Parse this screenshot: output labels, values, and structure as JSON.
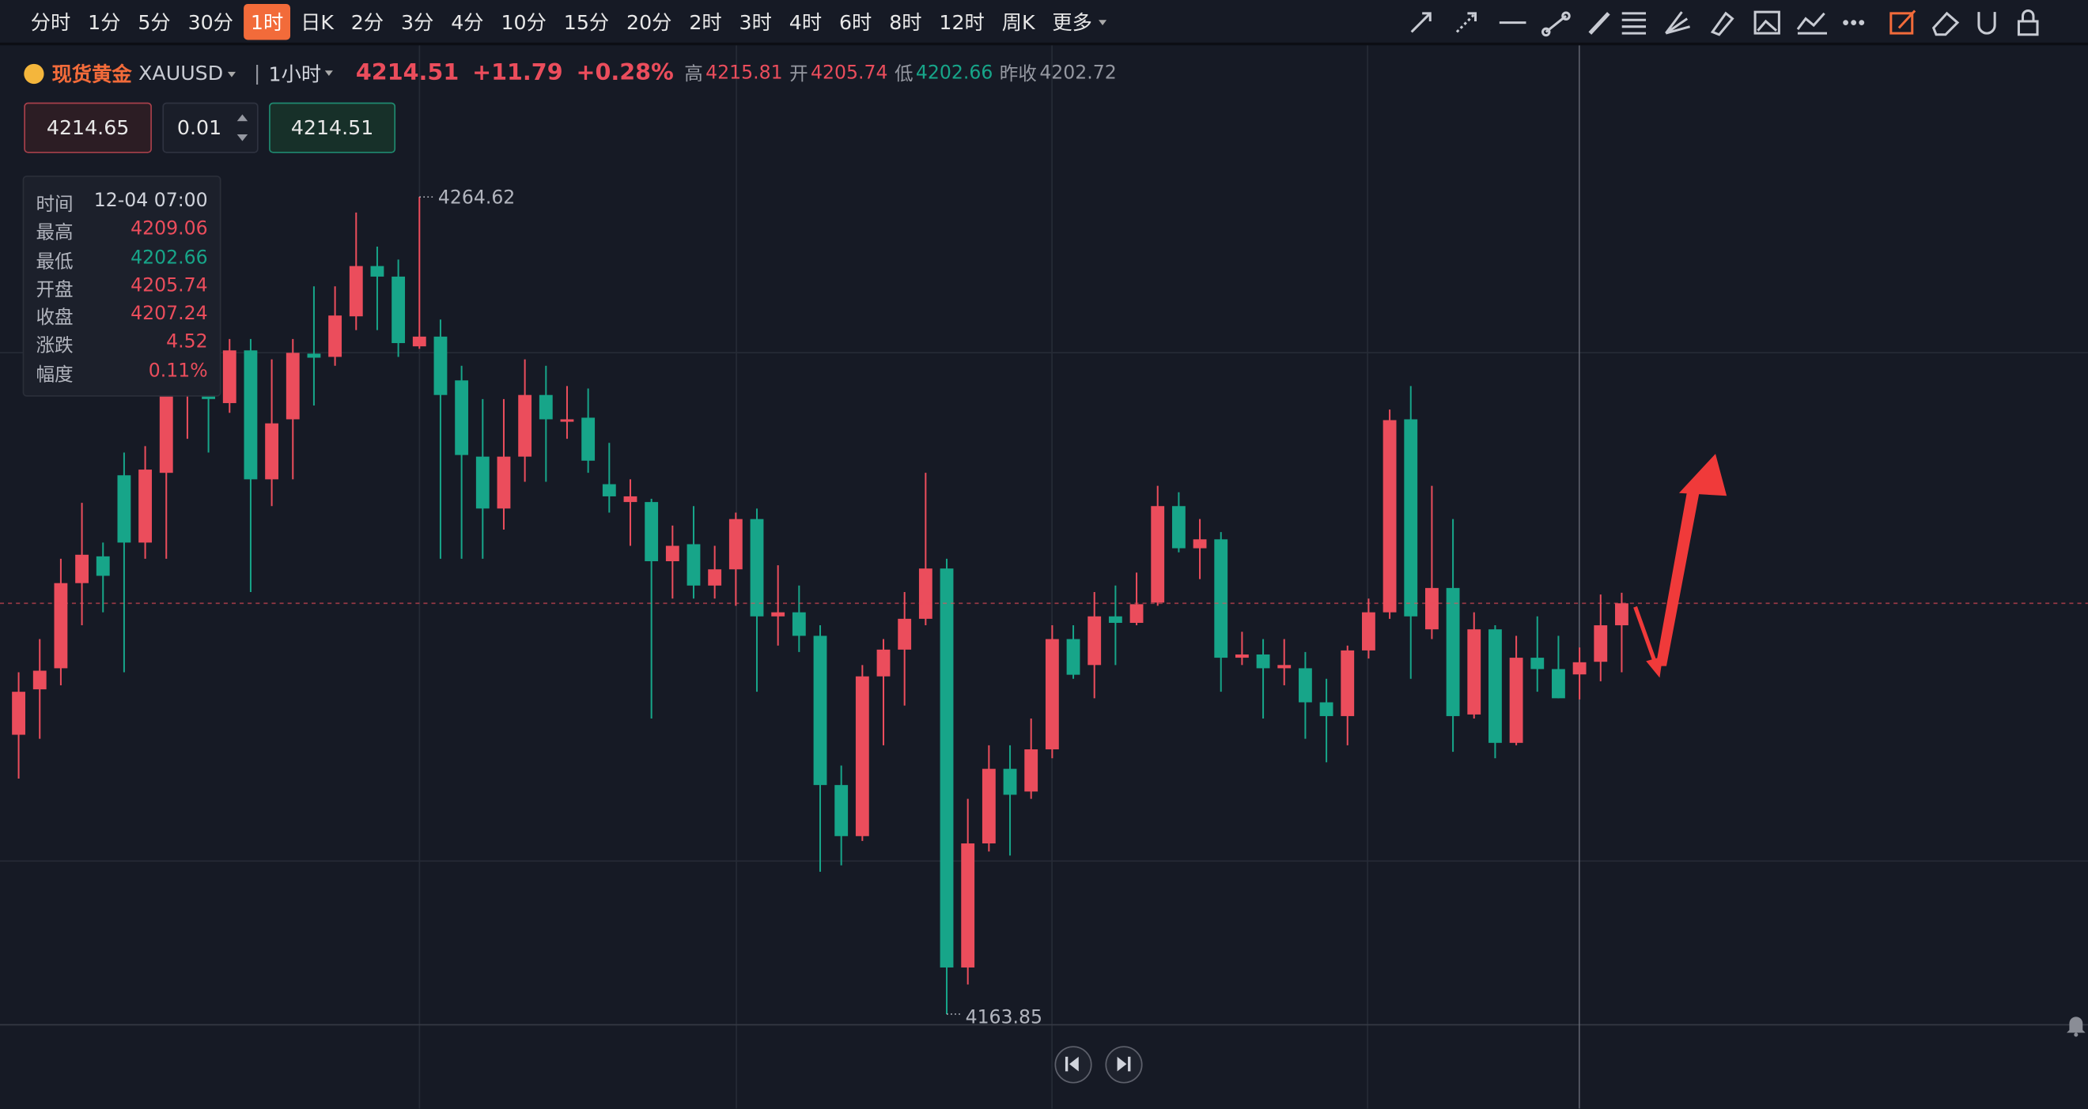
{
  "toolbar": {
    "periods": [
      "分时",
      "1分",
      "5分",
      "30分",
      "1时",
      "日K",
      "2分",
      "3分",
      "4分",
      "10分",
      "15分",
      "20分",
      "2时",
      "3时",
      "4时",
      "6时",
      "8时",
      "12时",
      "周K",
      "更多"
    ],
    "active": 4
  },
  "header": {
    "name": "现货黄金",
    "symbol": "XAUUSD",
    "interval": "1小时",
    "price": 4214.51,
    "change": "+11.79",
    "change_pct": "+0.28%",
    "high_label": "高",
    "high": 4215.81,
    "open_label": "开",
    "open": 4205.74,
    "low_label": "低",
    "low": 4202.66,
    "prev_close_label": "昨收",
    "prev_close": 4202.72
  },
  "order": {
    "ask": 4214.65,
    "lot": 0.01,
    "bid": 4214.51
  },
  "tooltip": {
    "rows": [
      {
        "label": "时间",
        "value": "12-04 07:00",
        "color": "#d1d4dc"
      },
      {
        "label": "最高",
        "value": 4209.06,
        "color": "#eb4d5c"
      },
      {
        "label": "最低",
        "value": 4202.66,
        "color": "#17a589"
      },
      {
        "label": "开盘",
        "value": 4205.74,
        "color": "#eb4d5c"
      },
      {
        "label": "收盘",
        "value": 4207.24,
        "color": "#eb4d5c"
      },
      {
        "label": "涨跌",
        "value": 4.52,
        "color": "#eb4d5c"
      },
      {
        "label": "幅度",
        "value": "0.11%",
        "color": "#eb4d5c"
      }
    ]
  },
  "chart_data": {
    "type": "candlestick",
    "up_color": "#eb4d5c",
    "down_color": "#17a589",
    "current_price": 4214.51,
    "ohlc": [
      [
        4198.3,
        4206.0,
        4192.9,
        4203.6
      ],
      [
        4203.9,
        4210.1,
        4197.8,
        4206.2
      ],
      [
        4206.5,
        4220.0,
        4204.4,
        4217.0
      ],
      [
        4217.0,
        4226.9,
        4211.8,
        4220.5
      ],
      [
        4220.3,
        4222.0,
        4213.4,
        4217.9
      ],
      [
        4230.3,
        4233.1,
        4206.0,
        4222.0
      ],
      [
        4222.0,
        4233.9,
        4220.0,
        4231.0
      ],
      [
        4230.6,
        4243.8,
        4220.0,
        4241.0
      ],
      [
        4241.0,
        4248.7,
        4234.8,
        4247.1
      ],
      [
        4244.6,
        4247.9,
        4233.1,
        4239.7
      ],
      [
        4239.2,
        4247.1,
        4238.0,
        4245.7
      ],
      [
        4245.7,
        4247.1,
        4215.9,
        4229.8
      ],
      [
        4229.8,
        4244.6,
        4226.5,
        4236.7
      ],
      [
        4237.2,
        4247.1,
        4229.8,
        4245.4
      ],
      [
        4245.3,
        4253.6,
        4238.9,
        4244.8
      ],
      [
        4244.9,
        4253.6,
        4243.8,
        4250.0
      ],
      [
        4249.9,
        4262.7,
        4248.2,
        4256.1
      ],
      [
        4256.1,
        4258.5,
        4248.2,
        4254.8
      ],
      [
        4254.8,
        4256.9,
        4244.9,
        4246.6
      ],
      [
        4246.2,
        4264.62,
        4245.9,
        4247.4
      ],
      [
        4247.4,
        4249.5,
        4220.0,
        4240.2
      ],
      [
        4242.0,
        4243.8,
        4220.0,
        4232.8
      ],
      [
        4232.6,
        4239.7,
        4220.0,
        4226.2
      ],
      [
        4226.2,
        4239.7,
        4223.6,
        4232.6
      ],
      [
        4232.6,
        4244.6,
        4229.5,
        4240.2
      ],
      [
        4240.2,
        4243.8,
        4229.5,
        4237.2
      ],
      [
        4236.9,
        4241.3,
        4234.8,
        4237.2
      ],
      [
        4237.4,
        4241.0,
        4230.6,
        4232.1
      ],
      [
        4229.2,
        4234.3,
        4225.7,
        4227.7
      ],
      [
        4227.0,
        4229.8,
        4221.6,
        4227.7
      ],
      [
        4227.0,
        4227.4,
        4200.3,
        4219.7
      ],
      [
        4219.7,
        4224.1,
        4215.1,
        4221.6
      ],
      [
        4221.8,
        4226.5,
        4215.1,
        4216.7
      ],
      [
        4216.7,
        4221.6,
        4215.1,
        4218.7
      ],
      [
        4218.7,
        4225.7,
        4214.2,
        4224.9
      ],
      [
        4224.9,
        4226.2,
        4203.6,
        4212.9
      ],
      [
        4212.9,
        4219.2,
        4209.3,
        4213.4
      ],
      [
        4213.4,
        4216.7,
        4208.5,
        4210.5
      ],
      [
        4210.5,
        4211.8,
        4181.4,
        4192.1
      ],
      [
        4192.1,
        4194.5,
        4182.2,
        4185.8
      ],
      [
        4185.8,
        4206.9,
        4185.2,
        4205.5
      ],
      [
        4205.5,
        4210.1,
        4197.0,
        4208.8
      ],
      [
        4208.8,
        4215.9,
        4201.9,
        4212.6
      ],
      [
        4212.6,
        4230.6,
        4211.8,
        4218.8
      ],
      [
        4218.8,
        4220.0,
        4163.85,
        4169.6
      ],
      [
        4169.6,
        4190.4,
        4167.5,
        4184.9
      ],
      [
        4184.9,
        4197.0,
        4183.9,
        4194.1
      ],
      [
        4194.1,
        4197.0,
        4183.4,
        4190.9
      ],
      [
        4191.3,
        4200.3,
        4190.4,
        4196.5
      ],
      [
        4196.5,
        4211.8,
        4195.4,
        4210.1
      ],
      [
        4210.1,
        4211.8,
        4205.2,
        4205.7
      ],
      [
        4206.9,
        4215.9,
        4202.8,
        4212.9
      ],
      [
        4212.9,
        4216.7,
        4206.9,
        4212.1
      ],
      [
        4212.1,
        4218.3,
        4211.8,
        4214.4
      ],
      [
        4214.6,
        4229.0,
        4214.2,
        4226.5
      ],
      [
        4226.5,
        4228.2,
        4220.8,
        4221.3
      ],
      [
        4221.3,
        4224.9,
        4217.5,
        4222.4
      ],
      [
        4222.4,
        4223.3,
        4203.6,
        4207.8
      ],
      [
        4207.8,
        4211.0,
        4206.9,
        4208.2
      ],
      [
        4208.2,
        4210.1,
        4200.3,
        4206.5
      ],
      [
        4206.5,
        4210.1,
        4204.4,
        4206.9
      ],
      [
        4206.5,
        4208.5,
        4197.8,
        4202.3
      ],
      [
        4202.3,
        4205.2,
        4194.9,
        4200.6
      ],
      [
        4200.6,
        4209.3,
        4197.0,
        4208.7
      ],
      [
        4208.7,
        4215.1,
        4207.7,
        4213.4
      ],
      [
        4213.4,
        4238.4,
        4212.6,
        4237.1
      ],
      [
        4237.2,
        4241.3,
        4205.2,
        4212.9
      ],
      [
        4211.3,
        4229.0,
        4210.1,
        4216.4
      ],
      [
        4216.4,
        4224.9,
        4196.2,
        4200.6
      ],
      [
        4200.8,
        4213.4,
        4200.3,
        4211.3
      ],
      [
        4211.3,
        4211.8,
        4195.4,
        4197.3
      ],
      [
        4197.3,
        4210.5,
        4197.0,
        4207.8
      ],
      [
        4207.8,
        4212.9,
        4203.6,
        4206.4
      ],
      [
        4206.4,
        4210.5,
        4202.8,
        4202.8
      ],
      [
        4205.74,
        4209.06,
        4202.66,
        4207.24
      ],
      [
        4207.3,
        4215.6,
        4204.9,
        4211.8
      ],
      [
        4211.8,
        4215.81,
        4206.0,
        4214.51
      ]
    ]
  }
}
